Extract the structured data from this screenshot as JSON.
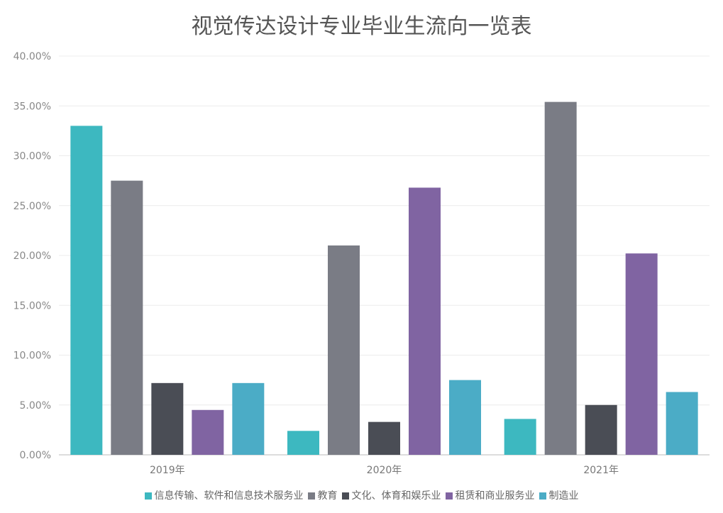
{
  "chart_data": {
    "type": "bar",
    "title": "视觉传达设计专业毕业生流向一览表",
    "categories": [
      "2019年",
      "2020年",
      "2021年"
    ],
    "ylim": [
      0,
      40
    ],
    "yticks": [
      "0.00%",
      "5.00%",
      "10.00%",
      "15.00%",
      "20.00%",
      "25.00%",
      "30.00%",
      "35.00%",
      "40.00%"
    ],
    "grid": true,
    "legend_position": "bottom",
    "series": [
      {
        "name": "信息传输、软件和信息技术服务业",
        "color": "#3db8c0",
        "values": [
          33.0,
          2.4,
          3.6
        ]
      },
      {
        "name": "教育",
        "color": "#7a7c85",
        "values": [
          27.5,
          21.0,
          35.4
        ]
      },
      {
        "name": "文化、体育和娱乐业",
        "color": "#4a4d55",
        "values": [
          7.2,
          3.3,
          5.0
        ]
      },
      {
        "name": "租赁和商业服务业",
        "color": "#8064a2",
        "values": [
          4.5,
          26.8,
          20.2
        ]
      },
      {
        "name": "制造业",
        "color": "#4bacc6",
        "values": [
          7.2,
          7.5,
          6.3
        ]
      }
    ]
  }
}
